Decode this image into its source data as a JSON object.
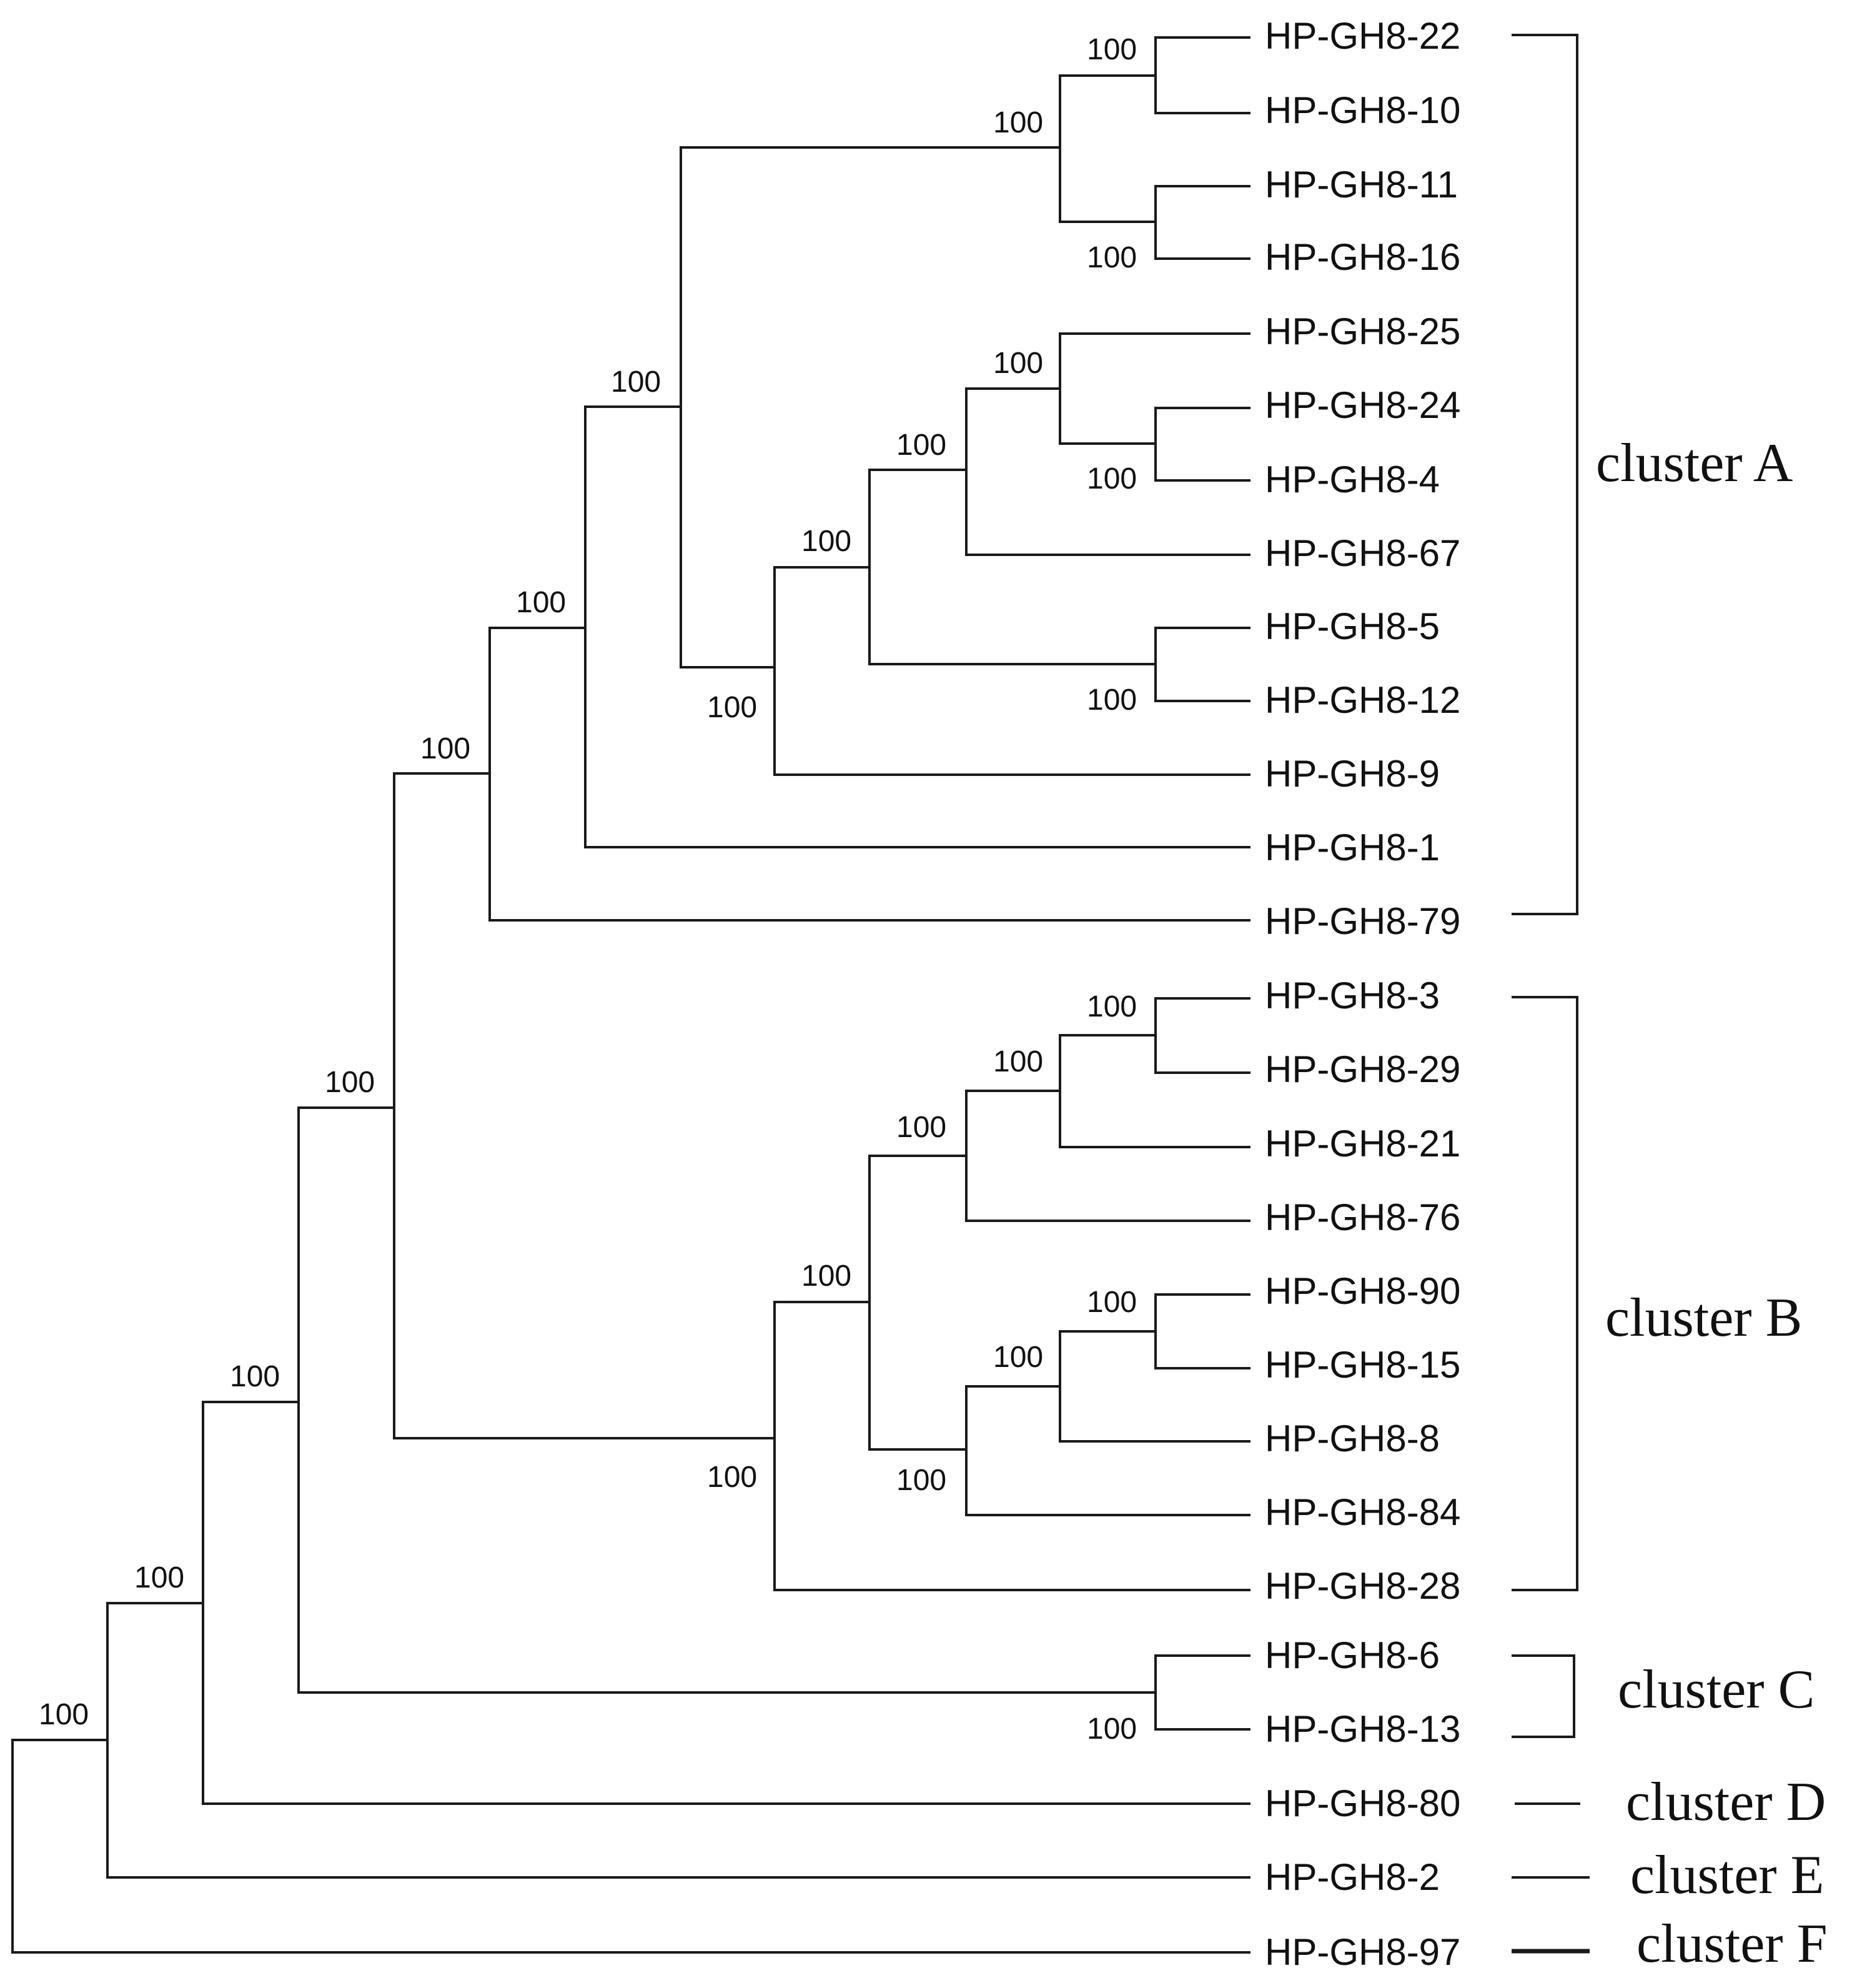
{
  "leaves": [
    "HP-GH8-22",
    "HP-GH8-10",
    "HP-GH8-11",
    "HP-GH8-16",
    "HP-GH8-25",
    "HP-GH8-24",
    "HP-GH8-4",
    "HP-GH8-67",
    "HP-GH8-5",
    "HP-GH8-12",
    "HP-GH8-9",
    "HP-GH8-1",
    "HP-GH8-79",
    "HP-GH8-3",
    "HP-GH8-29",
    "HP-GH8-21",
    "HP-GH8-76",
    "HP-GH8-90",
    "HP-GH8-15",
    "HP-GH8-8",
    "HP-GH8-84",
    "HP-GH8-28",
    "HP-GH8-6",
    "HP-GH8-13",
    "HP-GH8-80",
    "HP-GH8-2",
    "HP-GH8-97"
  ],
  "bootstrap": {
    "n22_10": "100",
    "n11_16": "100",
    "nA4": "100",
    "n24_4": "100",
    "n25grp": "100",
    "nA3": "100",
    "n5_12": "100",
    "nA2": "100",
    "nA1": "100",
    "nA": "100",
    "nA79": "100",
    "nAB": "100",
    "n3_29": "100",
    "n21grp": "100",
    "nB76": "100",
    "n90_15": "100",
    "n8grp": "100",
    "n84grp": "100",
    "nBinner": "100",
    "nB": "100",
    "nABC": "100",
    "n6_13": "100",
    "nD": "100",
    "nE": "100",
    "root": "100"
  },
  "clusters": [
    "cluster A",
    "cluster B",
    "cluster C",
    "cluster D",
    "cluster E",
    "cluster F"
  ]
}
